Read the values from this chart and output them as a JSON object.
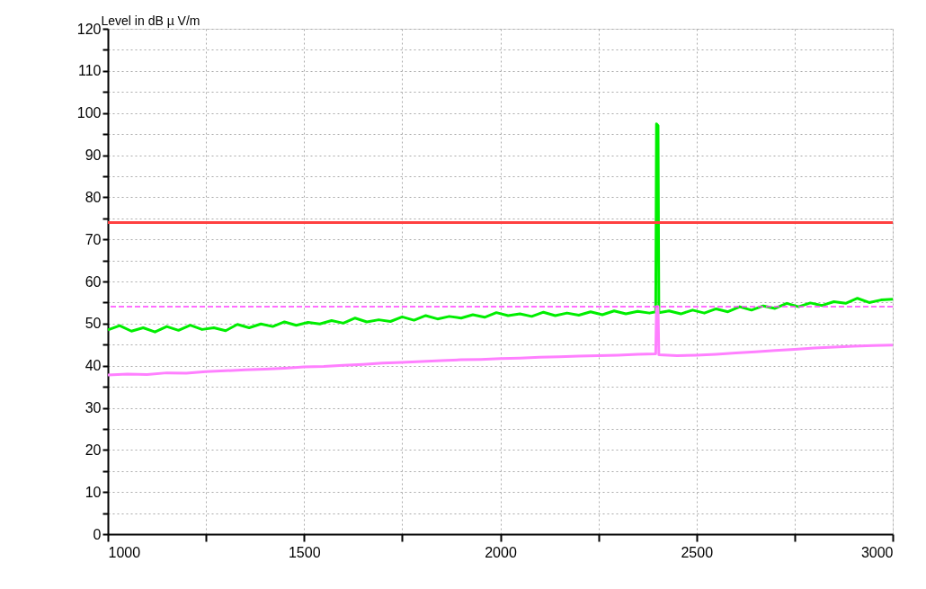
{
  "chart_data": {
    "type": "line",
    "ylabel": "Level in dB µ V/m",
    "xlim": [
      1000,
      3000
    ],
    "xticks": [
      1000,
      {
        "value": 1250,
        "label": null
      },
      1500,
      {
        "value": 1750,
        "label": null
      },
      2000,
      {
        "value": 2250,
        "label": null
      },
      2500,
      {
        "value": 2750,
        "label": null
      },
      3000
    ],
    "ylim": [
      0,
      120
    ],
    "yticks": [
      0,
      {
        "value": 5,
        "label": null
      },
      10,
      {
        "value": 15,
        "label": null
      },
      20,
      {
        "value": 25,
        "label": null
      },
      30,
      {
        "value": 35,
        "label": null
      },
      40,
      {
        "value": 45,
        "label": null
      },
      50,
      {
        "value": 55,
        "label": null
      },
      60,
      {
        "value": 65,
        "label": null
      },
      70,
      {
        "value": 75,
        "label": null
      },
      80,
      {
        "value": 85,
        "label": null
      },
      90,
      {
        "value": 95,
        "label": null
      },
      100,
      {
        "value": 105,
        "label": null
      },
      110,
      {
        "value": 115,
        "label": null
      },
      120
    ],
    "grid": true,
    "marker": "none",
    "line_style": "solid",
    "ref_lines": [
      {
        "axis": "y",
        "value": 74,
        "color": "#ff4040",
        "line_style": "solid"
      },
      {
        "axis": "y",
        "value": 54,
        "color": "#ff40ff",
        "line_style": "dashed"
      }
    ],
    "series": [
      {
        "color": "#00ee00",
        "x": [
          1000,
          1030,
          1060,
          1090,
          1120,
          1150,
          1180,
          1210,
          1240,
          1270,
          1300,
          1330,
          1360,
          1390,
          1420,
          1450,
          1480,
          1510,
          1540,
          1570,
          1600,
          1630,
          1660,
          1690,
          1720,
          1750,
          1780,
          1810,
          1840,
          1870,
          1900,
          1930,
          1960,
          1990,
          2020,
          2050,
          2080,
          2110,
          2140,
          2170,
          2200,
          2230,
          2260,
          2290,
          2320,
          2350,
          2380,
          2396,
          2398,
          2402,
          2404,
          2430,
          2460,
          2490,
          2520,
          2550,
          2580,
          2610,
          2640,
          2670,
          2700,
          2730,
          2760,
          2790,
          2820,
          2850,
          2880,
          2910,
          2940,
          2970,
          3000
        ],
        "values": [
          48.5,
          49.5,
          48.2,
          49.0,
          48.0,
          49.3,
          48.4,
          49.6,
          48.6,
          49.0,
          48.3,
          49.8,
          49.0,
          49.9,
          49.3,
          50.4,
          49.6,
          50.3,
          49.9,
          50.7,
          50.1,
          51.3,
          50.4,
          50.9,
          50.5,
          51.6,
          50.8,
          51.9,
          51.1,
          51.7,
          51.3,
          52.1,
          51.5,
          52.6,
          51.9,
          52.3,
          51.7,
          52.7,
          51.9,
          52.5,
          52.0,
          52.8,
          52.1,
          53.0,
          52.3,
          52.9,
          52.5,
          52.8,
          97.4,
          97.0,
          52.6,
          53.0,
          52.3,
          53.2,
          52.5,
          53.5,
          52.8,
          54.0,
          53.2,
          54.2,
          53.6,
          54.8,
          54.0,
          54.9,
          54.3,
          55.2,
          54.8,
          56.0,
          55.0,
          55.6,
          55.8
        ]
      },
      {
        "color": "#ff80ff",
        "x": [
          1000,
          1050,
          1100,
          1150,
          1200,
          1250,
          1300,
          1350,
          1400,
          1450,
          1500,
          1550,
          1600,
          1650,
          1700,
          1750,
          1800,
          1850,
          1900,
          1950,
          2000,
          2050,
          2100,
          2150,
          2200,
          2250,
          2300,
          2350,
          2396,
          2398,
          2402,
          2404,
          2450,
          2500,
          2550,
          2600,
          2650,
          2700,
          2750,
          2800,
          2850,
          2900,
          2950,
          3000
        ],
        "values": [
          37.8,
          38.0,
          37.9,
          38.3,
          38.2,
          38.6,
          38.8,
          39.0,
          39.2,
          39.4,
          39.7,
          39.8,
          40.1,
          40.3,
          40.6,
          40.8,
          41.0,
          41.2,
          41.4,
          41.5,
          41.7,
          41.8,
          42.0,
          42.1,
          42.3,
          42.4,
          42.5,
          42.7,
          42.8,
          54.0,
          54.0,
          42.6,
          42.4,
          42.5,
          42.7,
          43.0,
          43.3,
          43.6,
          43.9,
          44.2,
          44.4,
          44.6,
          44.8,
          44.9
        ]
      }
    ]
  }
}
